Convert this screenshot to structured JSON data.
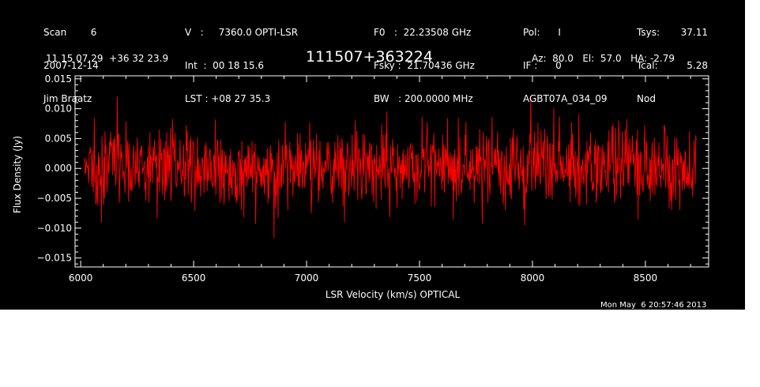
{
  "header": {
    "col1": [
      "Scan        6",
      "2007-12-14",
      "Jim Braatz"
    ],
    "col2": [
      "V   :     7360.0 OPTI-LSR",
      "Int  :  00 18 15.6",
      "LST : +08 27 35.3"
    ],
    "col3": [
      "F0   :  22.23508 GHz",
      "Fsky :  21.70436 GHz",
      "BW   : 200.0000 MHz"
    ],
    "col4": [
      "Pol:      I",
      "IF :      0",
      "AGBT07A_034_09"
    ],
    "col5a": [
      "Tsys:",
      "Tcal:",
      "Nod"
    ],
    "col5b": [
      "37.11",
      "5.28",
      ""
    ],
    "coords": "11 15 07.29  +36 32 23.9",
    "source": "111507+363224",
    "azelha": "Az:  80.0   El:  57.0   HA: -2.79",
    "timestamp": "Mon May  6 20:57:46 2013"
  },
  "chart_data": {
    "type": "line",
    "title": "",
    "xlabel": "LSR Velocity (km/s) OPTICAL",
    "ylabel": "Flux Density (Jy)",
    "xlim": [
      5975,
      8780
    ],
    "ylim": [
      -0.0165,
      0.0155
    ],
    "x_ticks": [
      6000,
      6500,
      7000,
      7500,
      8000,
      8500
    ],
    "x_tick_labels": [
      "6000",
      "6500",
      "7000",
      "7500",
      "8000",
      "8500"
    ],
    "y_ticks": [
      -0.015,
      -0.01,
      -0.005,
      0.0,
      0.005,
      0.01,
      0.015
    ],
    "y_tick_labels": [
      "−0.015",
      "−0.010",
      "−0.005",
      "0.000",
      "0.005",
      "0.010",
      "0.015"
    ],
    "grid": false,
    "series": [
      {
        "color": "#ff0000",
        "x_start": 6015,
        "x_end": 8725,
        "n_points": 1200,
        "mean": 0.0,
        "rms": 0.0033,
        "min": -0.0117,
        "max": 0.0146
      }
    ]
  },
  "colors": {
    "background": "#000000",
    "axes": "#ffffff",
    "trace": "#ff0000"
  }
}
